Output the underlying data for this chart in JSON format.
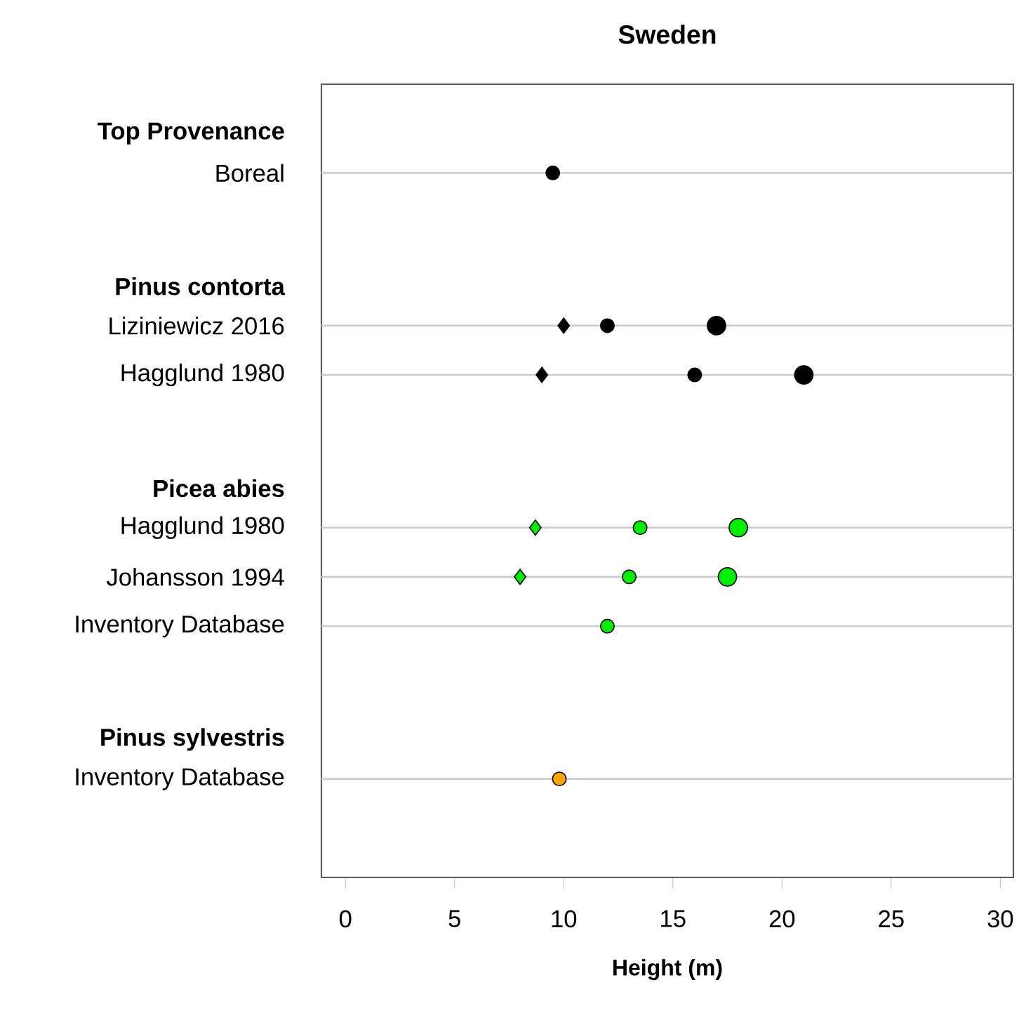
{
  "chart_data": {
    "type": "bubble",
    "title": "Sweden",
    "xlabel": "Height (m)",
    "orientation": "horizontal",
    "categories": [
      "Top Provenance",
      "Boreal",
      "Pinus contorta",
      "Liziniewicz 2016",
      "Hagglund 1980",
      "Picea abies",
      "Hagglund 1980",
      "Johansson 1994",
      "Inventory Database",
      "Pinus sylvestris",
      "Inventory Database"
    ],
    "series": [
      {
        "marker": "diamond",
        "values": [
          null,
          null,
          null,
          10,
          9,
          null,
          8.7,
          8,
          null,
          null,
          null
        ],
        "sizes": [
          null,
          null,
          null,
          0.33,
          0.33,
          null,
          0.33,
          0.33,
          null,
          null,
          null
        ],
        "colors": [
          null,
          null,
          null,
          "#000000",
          "#000000",
          null,
          "#00ee00",
          "#00ee00",
          null,
          null,
          null
        ]
      },
      {
        "marker": "circle",
        "values": [
          null,
          9.5,
          null,
          12,
          16,
          null,
          13.5,
          13,
          12,
          null,
          9.8
        ],
        "sizes": [
          null,
          0.55,
          null,
          0.55,
          0.55,
          null,
          0.55,
          0.55,
          0.55,
          null,
          0.55
        ],
        "colors": [
          null,
          "#000000",
          null,
          "#000000",
          "#000000",
          null,
          "#00ee00",
          "#00ee00",
          "#00ee00",
          null,
          "#ffa500"
        ]
      },
      {
        "marker": "circle",
        "values": [
          null,
          null,
          null,
          17,
          21,
          null,
          18,
          17.5,
          null,
          null,
          null
        ],
        "sizes": [
          null,
          null,
          null,
          1,
          1,
          null,
          1,
          1,
          null,
          null,
          null
        ],
        "colors": [
          null,
          null,
          null,
          "#000000",
          "#000000",
          null,
          "#00ee00",
          "#00ee00",
          null,
          null,
          null
        ]
      }
    ],
    "xlim": [
      -1.1,
      30.6
    ],
    "xticks": [
      0,
      5,
      10,
      15,
      20,
      25,
      30
    ],
    "grid": "y"
  }
}
